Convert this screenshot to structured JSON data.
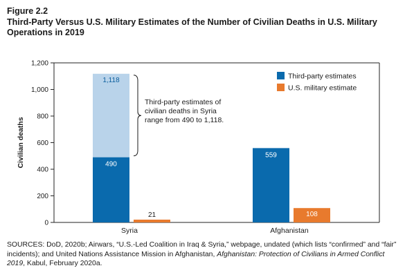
{
  "figure_label": "Figure 2.2",
  "figure_title": "Third-Party Versus U.S. Military Estimates of the Number of Civilian Deaths in U.S. Military Operations in 2019",
  "sources": {
    "part1": "SOURCES: DoD, 2020b; Airwars, “U.S.-Led Coalition in Iraq & Syria,” webpage, undated (which lists “confirmed” and “fair” incidents); and United Nations Assistance Mission in Afghanistan, ",
    "italic": "Afghanistan: Protection of Civilians in Armed Conflict 2019",
    "part2": ", Kabul, February 2020a."
  },
  "chart_data": {
    "type": "bar",
    "ylabel": "Civilian deaths",
    "ylim": [
      0,
      1200
    ],
    "yticks": [
      0,
      200,
      400,
      600,
      800,
      1000,
      1200
    ],
    "ytick_labels": [
      "0",
      "200",
      "400",
      "600",
      "800",
      "1,000",
      "1,200"
    ],
    "categories": [
      "Syria",
      "Afghanistan"
    ],
    "series": [
      {
        "name": "Third-party estimates",
        "color": "#0a6aad",
        "values": [
          490,
          559
        ],
        "labels": [
          "490",
          "559"
        ],
        "range_upper": [
          1118,
          null
        ],
        "range_upper_labels": [
          "1,118",
          ""
        ],
        "range_color": "#b9d3ea"
      },
      {
        "name": "U.S. military estimate",
        "color": "#e87a2d",
        "values": [
          21,
          108
        ],
        "labels": [
          "21",
          "108"
        ]
      }
    ],
    "annotation": "Third-party estimates of civilian deaths in Syria range from 490 to 1,118.",
    "legend_position": "top-right",
    "colors": {
      "axis": "#222222",
      "label_light": "#ffffff",
      "label_dark": "#1a1a1a",
      "range_label": "#0a5d9c"
    }
  }
}
